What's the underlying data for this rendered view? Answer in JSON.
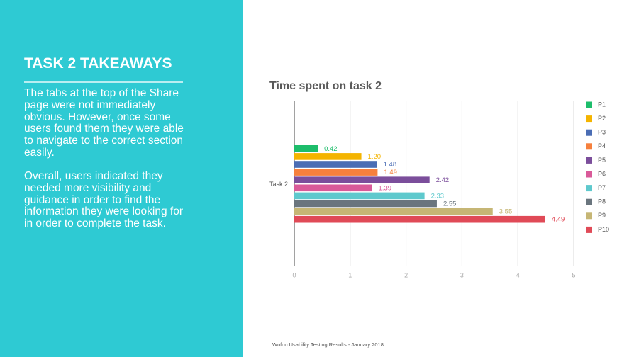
{
  "slide": {
    "title": "TASK 2 TAKEAWAYS",
    "paragraphs": [
      "The tabs at the top of the Share page were not immediately obvious. However, once some users found them they were able to navigate to the correct section easily.",
      "Overall, users indicated they needed more visibility and guidance in order to find the information they were looking for in order to complete the task."
    ],
    "footer": "Wufoo Usability Testing Results - January 2018"
  },
  "chart_data": {
    "type": "bar",
    "orientation": "horizontal",
    "title": "Time spent on task 2",
    "categories": [
      "Task 2"
    ],
    "series": [
      {
        "name": "P1",
        "color": "#1dbd6b",
        "values": [
          0.42
        ]
      },
      {
        "name": "P2",
        "color": "#f4b400",
        "values": [
          1.2
        ],
        "value_labels": [
          "1.20"
        ]
      },
      {
        "name": "P3",
        "color": "#4a6db4",
        "values": [
          1.48
        ]
      },
      {
        "name": "P4",
        "color": "#f6803d",
        "values": [
          1.49
        ]
      },
      {
        "name": "P5",
        "color": "#7b4e9b",
        "values": [
          2.42
        ]
      },
      {
        "name": "P6",
        "color": "#d95a99",
        "values": [
          1.39
        ]
      },
      {
        "name": "P7",
        "color": "#5ec9cd",
        "values": [
          2.33
        ]
      },
      {
        "name": "P8",
        "color": "#6a757e",
        "values": [
          2.55
        ]
      },
      {
        "name": "P9",
        "color": "#c6b675",
        "values": [
          3.55
        ]
      },
      {
        "name": "P10",
        "color": "#e04a57",
        "values": [
          4.49
        ]
      }
    ],
    "xlim": [
      0,
      5
    ],
    "xticks": [
      0,
      1,
      2,
      3,
      4,
      5
    ],
    "grid": true,
    "legend": "right"
  }
}
